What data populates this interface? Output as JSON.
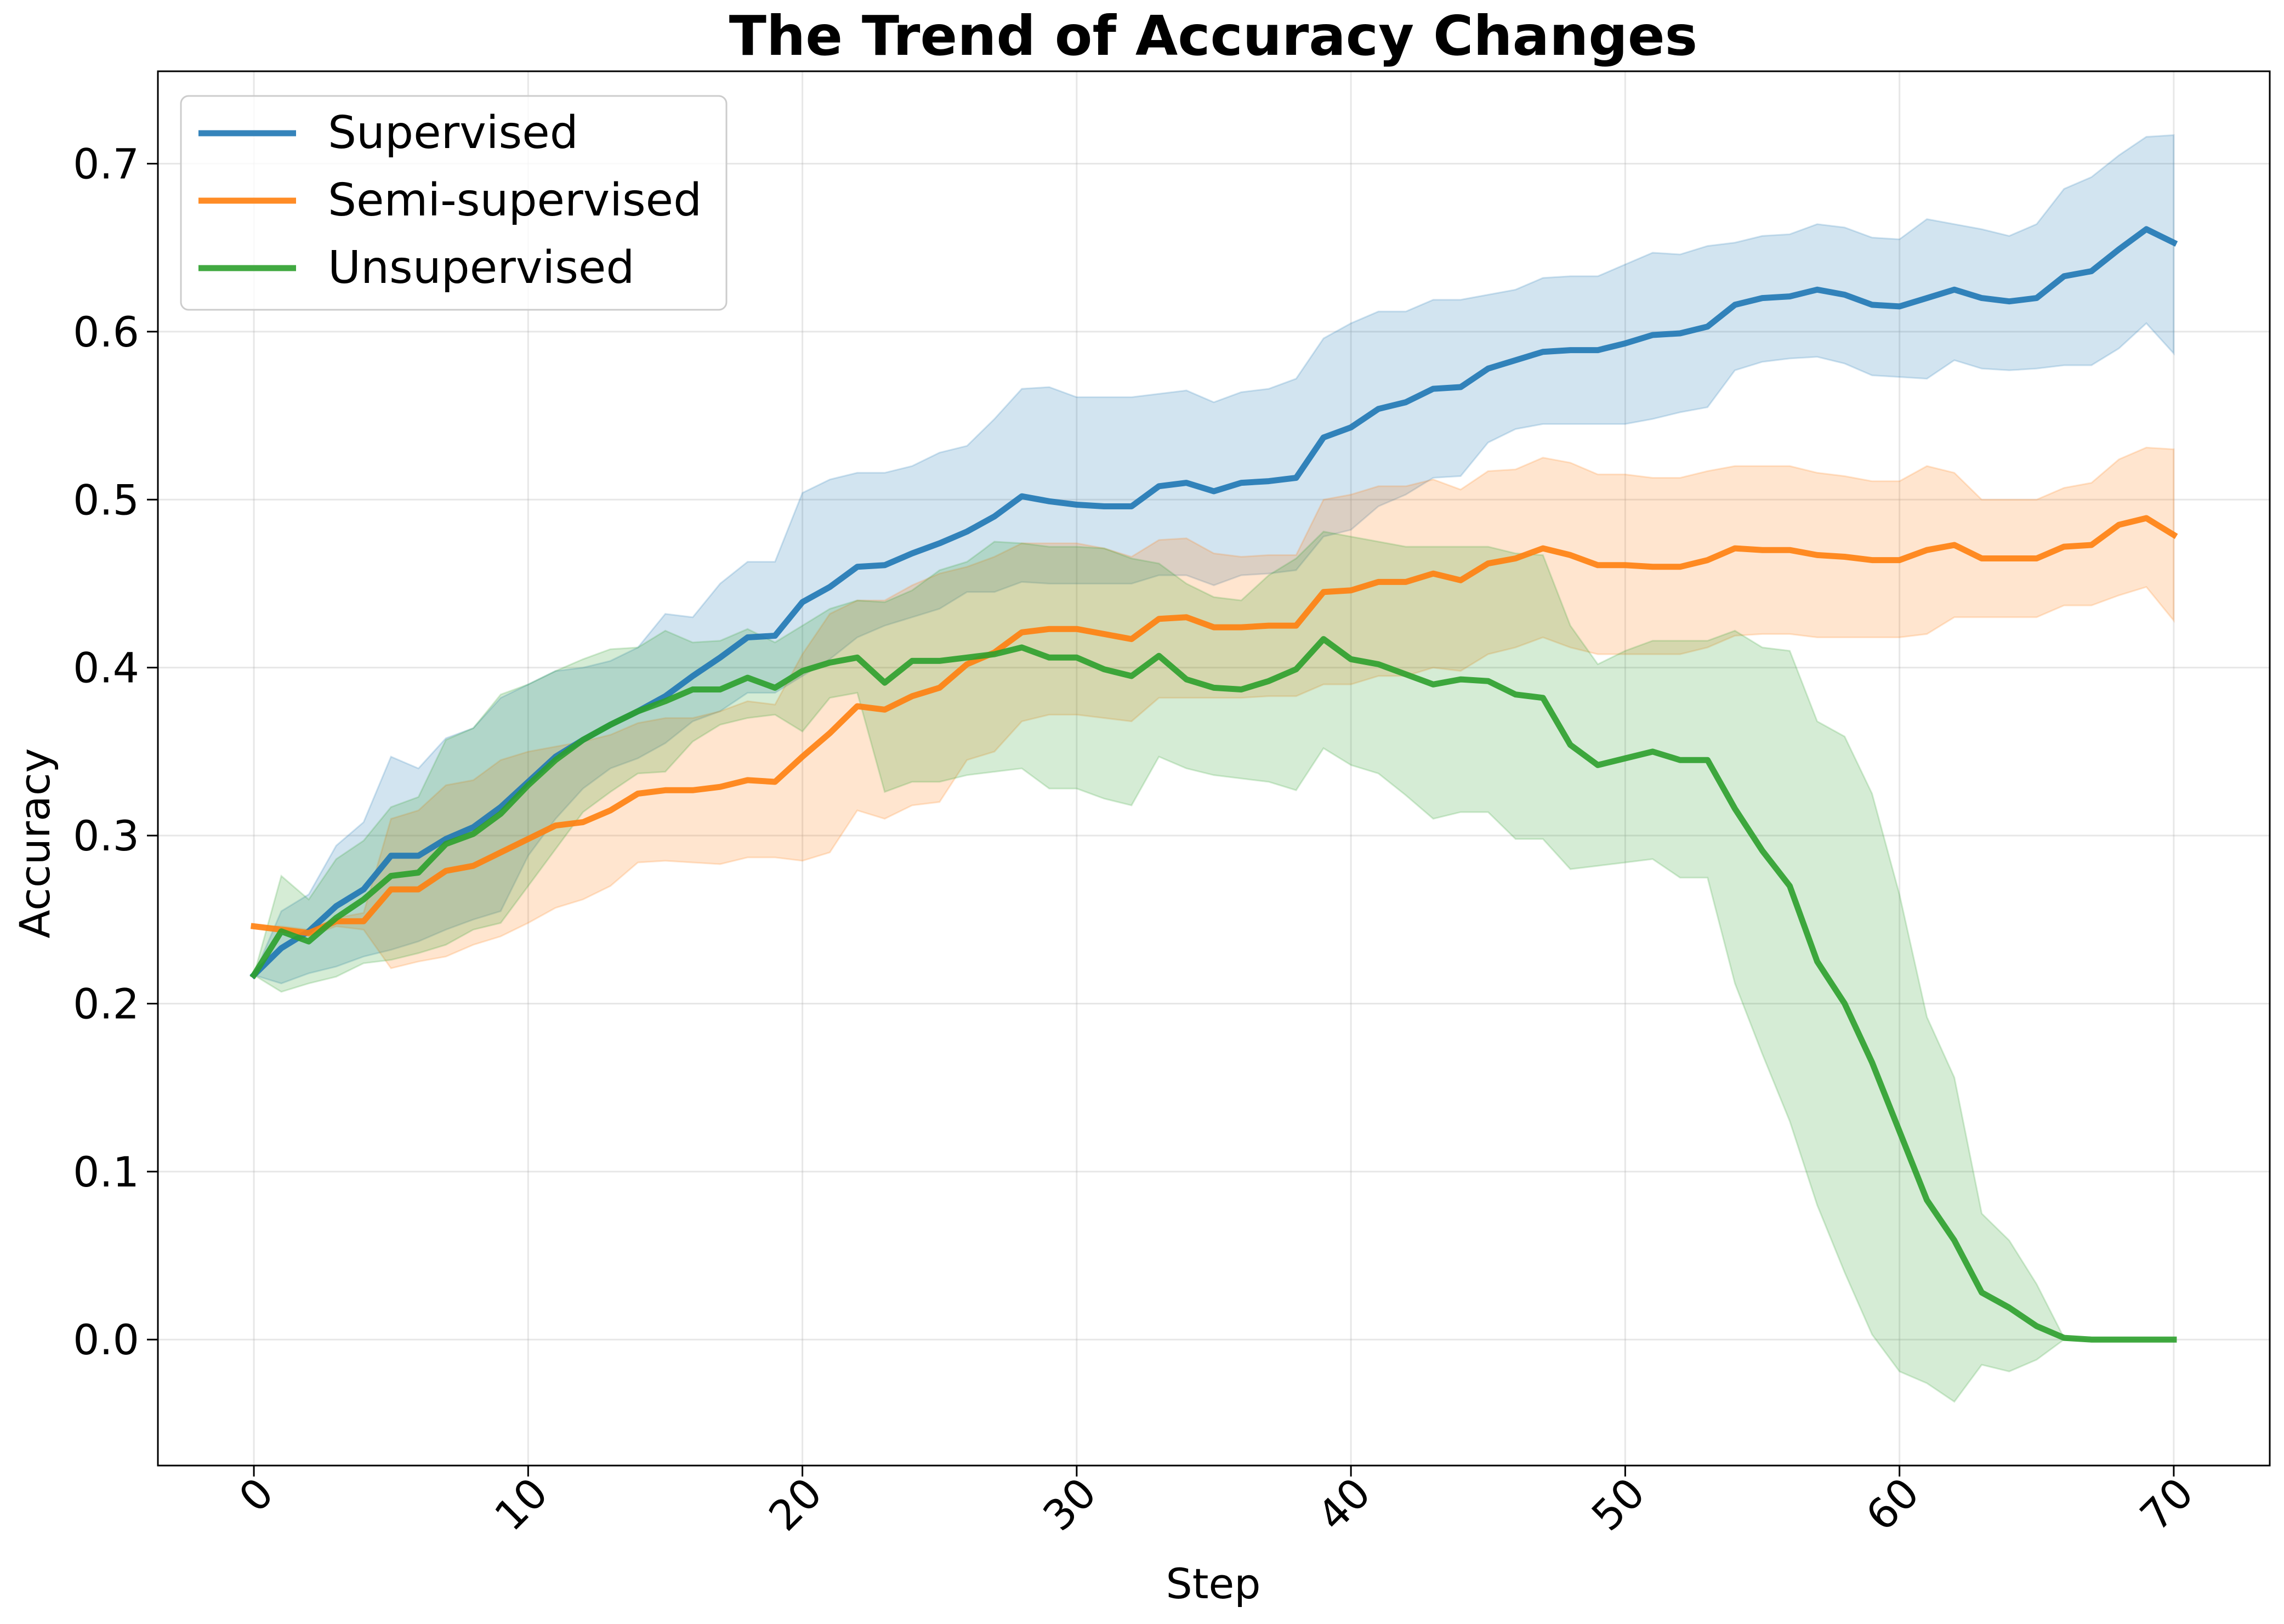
{
  "chart_data": {
    "type": "line",
    "title": "The Trend of Accuracy Changes",
    "xlabel": "Step",
    "ylabel": "Accuracy",
    "xlim": [
      -3.5,
      73.5
    ],
    "ylim": [
      -0.075,
      0.755
    ],
    "xticks": [
      0,
      10,
      20,
      30,
      40,
      50,
      60,
      70
    ],
    "yticks": [
      0.0,
      0.1,
      0.2,
      0.3,
      0.4,
      0.5,
      0.6,
      0.7
    ],
    "ytick_labels": [
      "0.0",
      "0.1",
      "0.2",
      "0.3",
      "0.4",
      "0.5",
      "0.6",
      "0.7"
    ],
    "grid": true,
    "legend_position": "top-left",
    "series": [
      {
        "name": "Supervised",
        "color": "#1f77b4",
        "x": [
          0,
          1,
          2,
          3,
          4,
          5,
          6,
          7,
          8,
          9,
          10,
          11,
          12,
          13,
          14,
          15,
          16,
          17,
          18,
          19,
          20,
          21,
          22,
          23,
          24,
          25,
          26,
          27,
          28,
          29,
          30,
          31,
          32,
          33,
          34,
          35,
          36,
          37,
          38,
          39,
          40,
          41,
          42,
          43,
          44,
          45,
          46,
          47,
          48,
          49,
          50,
          51,
          52,
          53,
          54,
          55,
          56,
          57,
          58,
          59,
          60,
          61,
          62,
          63,
          64,
          65,
          66,
          67,
          68,
          69,
          70
        ],
        "y": [
          0.217,
          0.233,
          0.243,
          0.258,
          0.268,
          0.288,
          0.288,
          0.298,
          0.305,
          0.317,
          0.332,
          0.347,
          0.357,
          0.366,
          0.374,
          0.383,
          0.395,
          0.406,
          0.418,
          0.419,
          0.439,
          0.448,
          0.46,
          0.461,
          0.468,
          0.474,
          0.481,
          0.49,
          0.502,
          0.499,
          0.497,
          0.496,
          0.496,
          0.508,
          0.51,
          0.505,
          0.51,
          0.511,
          0.513,
          0.537,
          0.543,
          0.554,
          0.558,
          0.566,
          0.567,
          0.578,
          0.583,
          0.588,
          0.589,
          0.589,
          0.593,
          0.598,
          0.599,
          0.603,
          0.616,
          0.62,
          0.621,
          0.625,
          0.622,
          0.616,
          0.615,
          0.62,
          0.625,
          0.62,
          0.618,
          0.62,
          0.633,
          0.636,
          0.649,
          0.661,
          0.653
        ],
        "lower": [
          0.217,
          0.212,
          0.218,
          0.222,
          0.228,
          0.232,
          0.237,
          0.244,
          0.25,
          0.255,
          0.288,
          0.31,
          0.328,
          0.34,
          0.346,
          0.355,
          0.368,
          0.374,
          0.385,
          0.385,
          0.395,
          0.405,
          0.418,
          0.425,
          0.43,
          0.435,
          0.445,
          0.445,
          0.451,
          0.45,
          0.45,
          0.45,
          0.45,
          0.455,
          0.455,
          0.449,
          0.455,
          0.456,
          0.458,
          0.478,
          0.482,
          0.496,
          0.503,
          0.513,
          0.514,
          0.534,
          0.542,
          0.545,
          0.545,
          0.545,
          0.545,
          0.548,
          0.552,
          0.555,
          0.577,
          0.582,
          0.584,
          0.585,
          0.581,
          0.574,
          0.573,
          0.572,
          0.583,
          0.578,
          0.577,
          0.578,
          0.58,
          0.58,
          0.59,
          0.605,
          0.587
        ],
        "upper": [
          0.217,
          0.255,
          0.265,
          0.294,
          0.308,
          0.347,
          0.34,
          0.358,
          0.364,
          0.382,
          0.39,
          0.398,
          0.4,
          0.404,
          0.412,
          0.432,
          0.43,
          0.45,
          0.463,
          0.463,
          0.504,
          0.512,
          0.516,
          0.516,
          0.52,
          0.528,
          0.532,
          0.548,
          0.566,
          0.567,
          0.561,
          0.561,
          0.561,
          0.563,
          0.565,
          0.558,
          0.564,
          0.566,
          0.572,
          0.596,
          0.605,
          0.612,
          0.612,
          0.619,
          0.619,
          0.622,
          0.625,
          0.632,
          0.633,
          0.633,
          0.64,
          0.647,
          0.646,
          0.651,
          0.653,
          0.657,
          0.658,
          0.664,
          0.662,
          0.656,
          0.655,
          0.667,
          0.664,
          0.661,
          0.657,
          0.664,
          0.685,
          0.692,
          0.705,
          0.716,
          0.717
        ]
      },
      {
        "name": "Semi-supervised",
        "color": "#ff7f0e",
        "x": [
          0,
          1,
          2,
          3,
          4,
          5,
          6,
          7,
          8,
          9,
          10,
          11,
          12,
          13,
          14,
          15,
          16,
          17,
          18,
          19,
          20,
          21,
          22,
          23,
          24,
          25,
          26,
          27,
          28,
          29,
          30,
          31,
          32,
          33,
          34,
          35,
          36,
          37,
          38,
          39,
          40,
          41,
          42,
          43,
          44,
          45,
          46,
          47,
          48,
          49,
          50,
          51,
          52,
          53,
          54,
          55,
          56,
          57,
          58,
          59,
          60,
          61,
          62,
          63,
          64,
          65,
          66,
          67,
          68,
          69,
          70
        ],
        "y": [
          0.246,
          0.244,
          0.242,
          0.249,
          0.249,
          0.268,
          0.268,
          0.279,
          0.282,
          0.29,
          0.298,
          0.306,
          0.308,
          0.315,
          0.325,
          0.327,
          0.327,
          0.329,
          0.333,
          0.332,
          0.347,
          0.361,
          0.377,
          0.375,
          0.383,
          0.388,
          0.402,
          0.409,
          0.421,
          0.423,
          0.423,
          0.42,
          0.417,
          0.429,
          0.43,
          0.424,
          0.424,
          0.425,
          0.425,
          0.445,
          0.446,
          0.451,
          0.451,
          0.456,
          0.452,
          0.462,
          0.465,
          0.471,
          0.467,
          0.461,
          0.461,
          0.46,
          0.46,
          0.464,
          0.471,
          0.47,
          0.47,
          0.467,
          0.466,
          0.464,
          0.464,
          0.47,
          0.473,
          0.465,
          0.465,
          0.465,
          0.472,
          0.473,
          0.485,
          0.489,
          0.479
        ],
        "lower": [
          0.246,
          0.246,
          0.24,
          0.246,
          0.244,
          0.221,
          0.225,
          0.228,
          0.235,
          0.24,
          0.248,
          0.257,
          0.262,
          0.27,
          0.284,
          0.285,
          0.284,
          0.283,
          0.287,
          0.287,
          0.285,
          0.29,
          0.315,
          0.31,
          0.318,
          0.32,
          0.345,
          0.35,
          0.368,
          0.372,
          0.372,
          0.37,
          0.368,
          0.382,
          0.382,
          0.382,
          0.382,
          0.383,
          0.383,
          0.39,
          0.39,
          0.395,
          0.395,
          0.4,
          0.398,
          0.408,
          0.412,
          0.418,
          0.412,
          0.408,
          0.408,
          0.408,
          0.408,
          0.412,
          0.419,
          0.42,
          0.42,
          0.418,
          0.418,
          0.418,
          0.418,
          0.42,
          0.43,
          0.43,
          0.43,
          0.43,
          0.437,
          0.437,
          0.443,
          0.448,
          0.428
        ],
        "upper": [
          0.246,
          0.246,
          0.244,
          0.251,
          0.254,
          0.31,
          0.315,
          0.33,
          0.333,
          0.345,
          0.35,
          0.353,
          0.356,
          0.36,
          0.367,
          0.37,
          0.37,
          0.374,
          0.38,
          0.378,
          0.408,
          0.432,
          0.44,
          0.44,
          0.449,
          0.456,
          0.46,
          0.466,
          0.474,
          0.474,
          0.474,
          0.471,
          0.466,
          0.476,
          0.477,
          0.468,
          0.466,
          0.467,
          0.467,
          0.5,
          0.503,
          0.508,
          0.508,
          0.512,
          0.506,
          0.517,
          0.518,
          0.525,
          0.522,
          0.515,
          0.515,
          0.513,
          0.513,
          0.517,
          0.52,
          0.52,
          0.52,
          0.516,
          0.514,
          0.511,
          0.511,
          0.52,
          0.516,
          0.5,
          0.5,
          0.5,
          0.507,
          0.51,
          0.524,
          0.531,
          0.53
        ]
      },
      {
        "name": "Unsupervised",
        "color": "#2ca02c",
        "x": [
          0,
          1,
          2,
          3,
          4,
          5,
          6,
          7,
          8,
          9,
          10,
          11,
          12,
          13,
          14,
          15,
          16,
          17,
          18,
          19,
          20,
          21,
          22,
          23,
          24,
          25,
          26,
          27,
          28,
          29,
          30,
          31,
          32,
          33,
          34,
          35,
          36,
          37,
          38,
          39,
          40,
          41,
          42,
          43,
          44,
          45,
          46,
          47,
          48,
          49,
          50,
          51,
          52,
          53,
          54,
          55,
          56,
          57,
          58,
          59,
          60,
          61,
          62,
          63,
          64,
          65,
          66,
          67,
          68,
          69,
          70
        ],
        "y": [
          0.217,
          0.243,
          0.237,
          0.251,
          0.262,
          0.276,
          0.278,
          0.295,
          0.301,
          0.313,
          0.33,
          0.345,
          0.357,
          0.366,
          0.374,
          0.38,
          0.387,
          0.387,
          0.394,
          0.388,
          0.398,
          0.403,
          0.406,
          0.391,
          0.404,
          0.404,
          0.406,
          0.408,
          0.412,
          0.406,
          0.406,
          0.399,
          0.395,
          0.407,
          0.393,
          0.388,
          0.387,
          0.392,
          0.399,
          0.417,
          0.405,
          0.402,
          0.396,
          0.39,
          0.393,
          0.392,
          0.384,
          0.382,
          0.354,
          0.342,
          0.346,
          0.35,
          0.345,
          0.345,
          0.316,
          0.291,
          0.27,
          0.225,
          0.2,
          0.165,
          0.124,
          0.083,
          0.059,
          0.028,
          0.019,
          0.008,
          0.001,
          0.0,
          0.0,
          0.0,
          0.0
        ],
        "lower": [
          0.217,
          0.207,
          0.212,
          0.216,
          0.224,
          0.226,
          0.23,
          0.235,
          0.244,
          0.248,
          0.27,
          0.292,
          0.314,
          0.326,
          0.337,
          0.338,
          0.356,
          0.366,
          0.37,
          0.372,
          0.362,
          0.382,
          0.385,
          0.326,
          0.332,
          0.332,
          0.336,
          0.338,
          0.34,
          0.328,
          0.328,
          0.322,
          0.318,
          0.347,
          0.34,
          0.336,
          0.334,
          0.332,
          0.327,
          0.352,
          0.342,
          0.337,
          0.324,
          0.31,
          0.314,
          0.314,
          0.298,
          0.298,
          0.28,
          0.282,
          0.284,
          0.286,
          0.275,
          0.275,
          0.212,
          0.17,
          0.13,
          0.08,
          0.04,
          0.003,
          -0.019,
          -0.026,
          -0.037,
          -0.015,
          -0.019,
          -0.012,
          0.0,
          0.0,
          0.0,
          0.0,
          0.0
        ],
        "upper": [
          0.217,
          0.276,
          0.262,
          0.286,
          0.297,
          0.317,
          0.323,
          0.357,
          0.364,
          0.384,
          0.39,
          0.398,
          0.405,
          0.411,
          0.412,
          0.422,
          0.415,
          0.416,
          0.423,
          0.415,
          0.425,
          0.435,
          0.44,
          0.439,
          0.446,
          0.458,
          0.463,
          0.475,
          0.474,
          0.472,
          0.472,
          0.471,
          0.465,
          0.462,
          0.45,
          0.442,
          0.44,
          0.455,
          0.465,
          0.481,
          0.478,
          0.475,
          0.472,
          0.472,
          0.472,
          0.472,
          0.468,
          0.467,
          0.425,
          0.402,
          0.41,
          0.416,
          0.416,
          0.416,
          0.422,
          0.412,
          0.41,
          0.368,
          0.359,
          0.325,
          0.265,
          0.192,
          0.156,
          0.075,
          0.059,
          0.033,
          0.001,
          0.0,
          0.0,
          0.0,
          0.0
        ]
      }
    ]
  }
}
